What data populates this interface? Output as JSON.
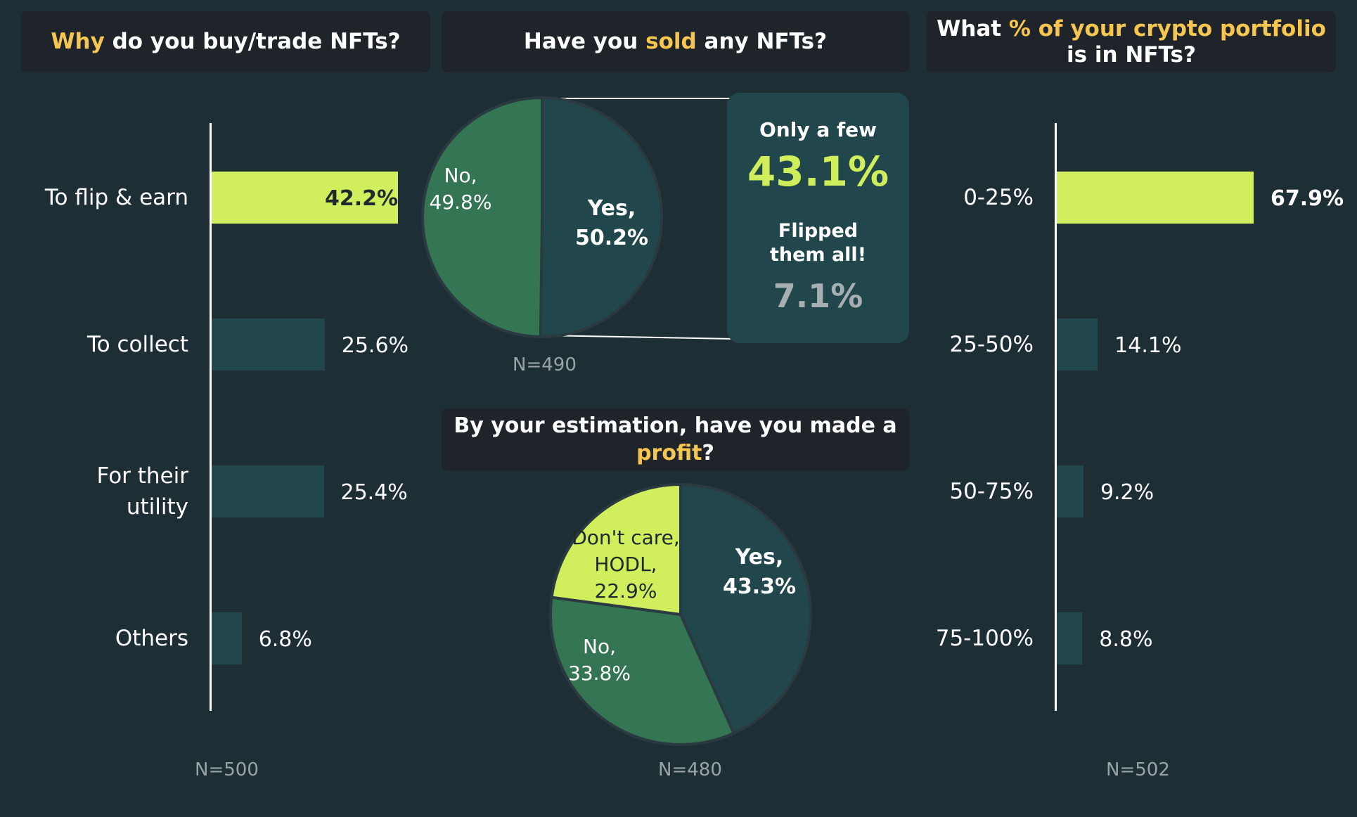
{
  "chart_data": [
    {
      "type": "bar",
      "orientation": "horizontal",
      "title_parts": [
        {
          "text": "Why",
          "highlight": true
        },
        {
          "text": " do you buy/trade NFTs?",
          "highlight": false
        }
      ],
      "categories": [
        "To flip & earn",
        "To collect",
        "For their\nutility",
        "Others"
      ],
      "values": [
        42.2,
        25.6,
        25.4,
        6.8
      ],
      "value_labels": [
        "42.2%",
        "25.6%",
        "25.4%",
        "6.8%"
      ],
      "n_label": "N=500",
      "highlight_color": "#d1ee5c",
      "bar_color": "#21474d"
    },
    {
      "type": "pie",
      "title_parts": [
        {
          "text": "Have you ",
          "highlight": false
        },
        {
          "text": "sold",
          "highlight": true
        },
        {
          "text": " any NFTs?",
          "highlight": false
        }
      ],
      "slices": [
        {
          "label": "Yes,\n50.2%",
          "value": 50.2,
          "color": "#21474d",
          "bold": true
        },
        {
          "label": "No,\n49.8%",
          "value": 49.8,
          "color": "#347554",
          "bold": false
        }
      ],
      "n_label": "N=490",
      "callout": {
        "title1": "Only a few",
        "value1": "43.1%",
        "title2": "Flipped\nthem all!",
        "value2": "7.1%"
      }
    },
    {
      "type": "pie",
      "title_parts": [
        {
          "text": "By your estimation,  have you made a ",
          "highlight": false
        },
        {
          "text": "profit",
          "highlight": true
        },
        {
          "text": "?",
          "highlight": false
        }
      ],
      "slices": [
        {
          "label": "Yes,\n43.3%",
          "value": 43.3,
          "color": "#21474d",
          "bold": true
        },
        {
          "label": "No,\n33.8%",
          "value": 33.8,
          "color": "#347554",
          "bold": false
        },
        {
          "label": "Don't care,\nHODL,\n22.9%",
          "value": 22.9,
          "color": "#d1ee5c",
          "bold": false
        }
      ],
      "n_label": "N=480"
    },
    {
      "type": "bar",
      "orientation": "horizontal",
      "title_parts": [
        {
          "text": "What ",
          "highlight": false
        },
        {
          "text": "% of your crypto portfolio",
          "highlight": true
        },
        {
          "text": "\nis in NFTs?",
          "highlight": false
        }
      ],
      "categories": [
        "0-25%",
        "25-50%",
        "50-75%",
        "75-100%"
      ],
      "values": [
        67.9,
        14.1,
        9.2,
        8.8
      ],
      "value_labels": [
        "67.9%",
        "14.1%",
        "9.2%",
        "8.8%"
      ],
      "n_label": "N=502",
      "highlight_color": "#d1ee5c",
      "bar_color": "#21474d"
    }
  ]
}
